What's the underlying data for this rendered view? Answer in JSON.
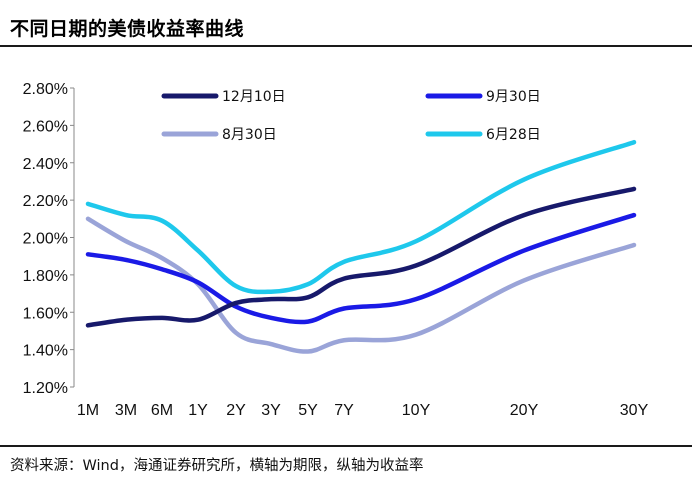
{
  "title": "不同日期的美债收益率曲线",
  "source": "资料来源：Wind，海通证券研究所，横轴为期限，纵轴为收益率",
  "chart_data": {
    "type": "line",
    "title": "不同日期的美债收益率曲线",
    "xlabel": "",
    "ylabel": "",
    "categories": [
      "1M",
      "3M",
      "6M",
      "1Y",
      "2Y",
      "3Y",
      "5Y",
      "7Y",
      "10Y",
      "20Y",
      "30Y"
    ],
    "x_positions": [
      1,
      3,
      6,
      12,
      24,
      36,
      60,
      84,
      120,
      240,
      360
    ],
    "ylim": [
      1.2,
      2.8
    ],
    "yticks": [
      "1.20%",
      "1.40%",
      "1.60%",
      "1.80%",
      "2.00%",
      "2.20%",
      "2.40%",
      "2.60%",
      "2.80%"
    ],
    "grid": false,
    "legend_position": "top",
    "series": [
      {
        "name": "12月10日",
        "color": "#17196b",
        "values": [
          1.53,
          1.56,
          1.57,
          1.56,
          1.65,
          1.67,
          1.68,
          1.78,
          1.85,
          2.12,
          2.26
        ]
      },
      {
        "name": "9月30日",
        "color": "#1a1ae6",
        "values": [
          1.91,
          1.88,
          1.83,
          1.76,
          1.63,
          1.57,
          1.55,
          1.62,
          1.67,
          1.93,
          2.12
        ]
      },
      {
        "name": "8月30日",
        "color": "#9aa4d8",
        "values": [
          2.1,
          1.98,
          1.89,
          1.75,
          1.49,
          1.43,
          1.39,
          1.45,
          1.48,
          1.77,
          1.96
        ]
      },
      {
        "name": "6月28日",
        "color": "#1ec8ec",
        "values": [
          2.18,
          2.12,
          2.09,
          1.93,
          1.74,
          1.71,
          1.75,
          1.87,
          1.98,
          2.31,
          2.51
        ]
      }
    ]
  }
}
